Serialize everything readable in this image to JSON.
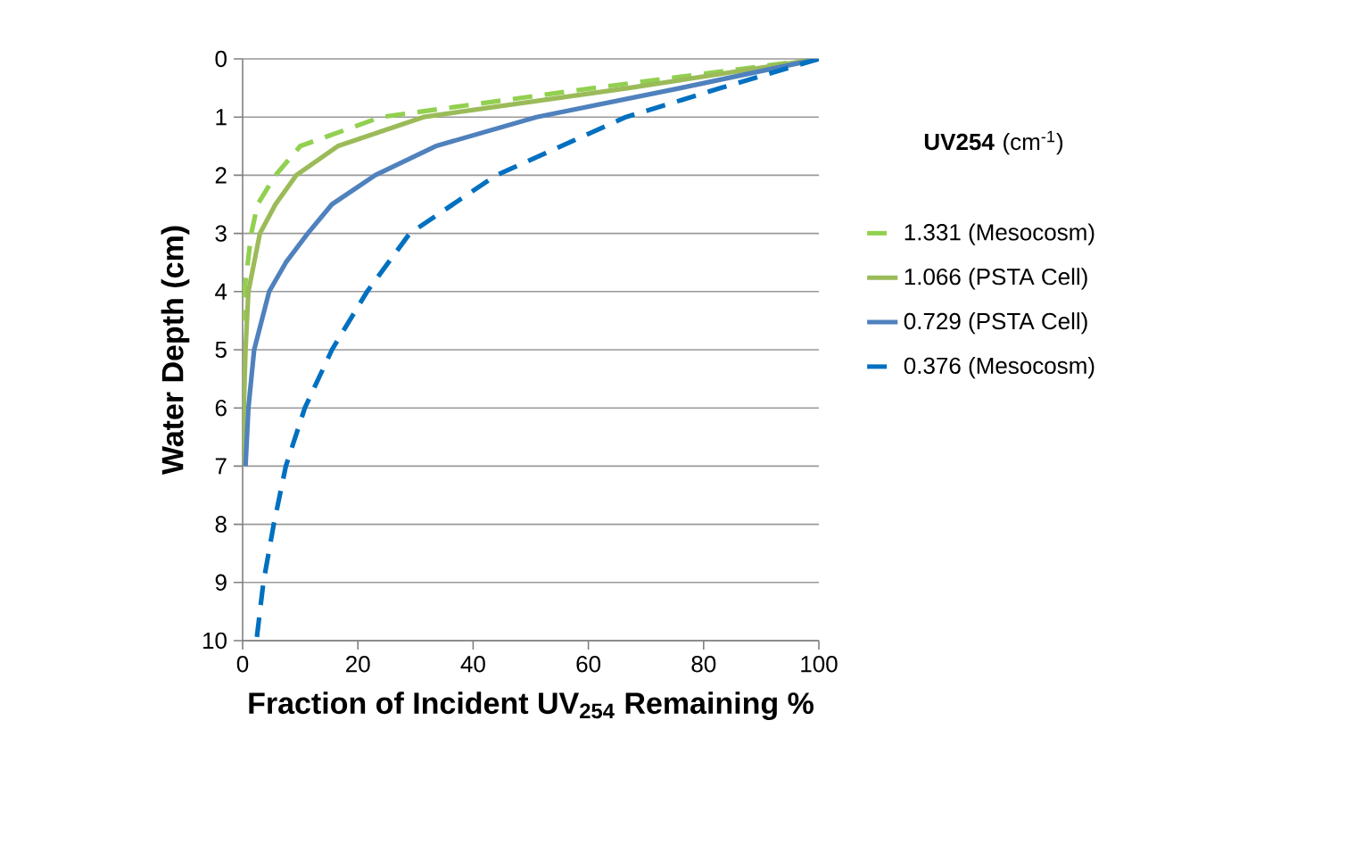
{
  "chart_data": {
    "type": "line",
    "xlabel": "Fraction of Incident UV$_{254}$ Remaining %",
    "ylabel": "Water Depth (cm)",
    "legend_title": "**UV254** (cm$^{-1}$)",
    "xlim": [
      0,
      100
    ],
    "xticks": [
      0,
      20,
      40,
      60,
      80,
      100
    ],
    "ylim": [
      10,
      0
    ],
    "yticks": [
      0,
      1,
      2,
      3,
      4,
      5,
      6,
      7,
      8,
      9,
      10
    ],
    "grid": "y",
    "legend": "right",
    "series": [
      {
        "name": "1.331 (Mesocosm)",
        "color": "#92d050",
        "line_style": "dashed",
        "x": [
          100,
          61,
          24,
          10,
          5.7,
          2.6,
          1.5,
          0.3,
          0
        ],
        "values": [
          0,
          0.5,
          1,
          1.5,
          2,
          2.5,
          3,
          4,
          4.5
        ]
      },
      {
        "name": "1.066 (PSTA Cell)",
        "color": "#9bbb59",
        "line_style": "solid",
        "x": [
          100,
          67,
          31.4,
          16.5,
          9.3,
          5.7,
          3,
          1,
          0.5,
          0.2,
          0
        ],
        "values": [
          0,
          0.5,
          1,
          1.5,
          2,
          2.5,
          3,
          4,
          5,
          6,
          7
        ]
      },
      {
        "name": "0.729 (PSTA Cell)",
        "color": "#4f81bd",
        "line_style": "solid",
        "x": [
          100,
          76,
          51,
          33.5,
          23,
          15.5,
          11.3,
          7.5,
          4.6,
          2,
          1,
          0.5
        ],
        "values": [
          0,
          0.5,
          1,
          1.5,
          2,
          2.5,
          3,
          3.5,
          4,
          5,
          6,
          7
        ]
      },
      {
        "name": "0.376 (Mesocosm)",
        "color": "#0070c0",
        "line_style": "dashed",
        "x": [
          100,
          83,
          66.5,
          44,
          29,
          21.6,
          15.5,
          10.8,
          7.5,
          5.4,
          3.6,
          2.4
        ],
        "values": [
          0,
          0.5,
          1,
          2,
          3,
          4,
          5,
          6,
          7,
          8,
          9,
          10
        ]
      }
    ]
  }
}
